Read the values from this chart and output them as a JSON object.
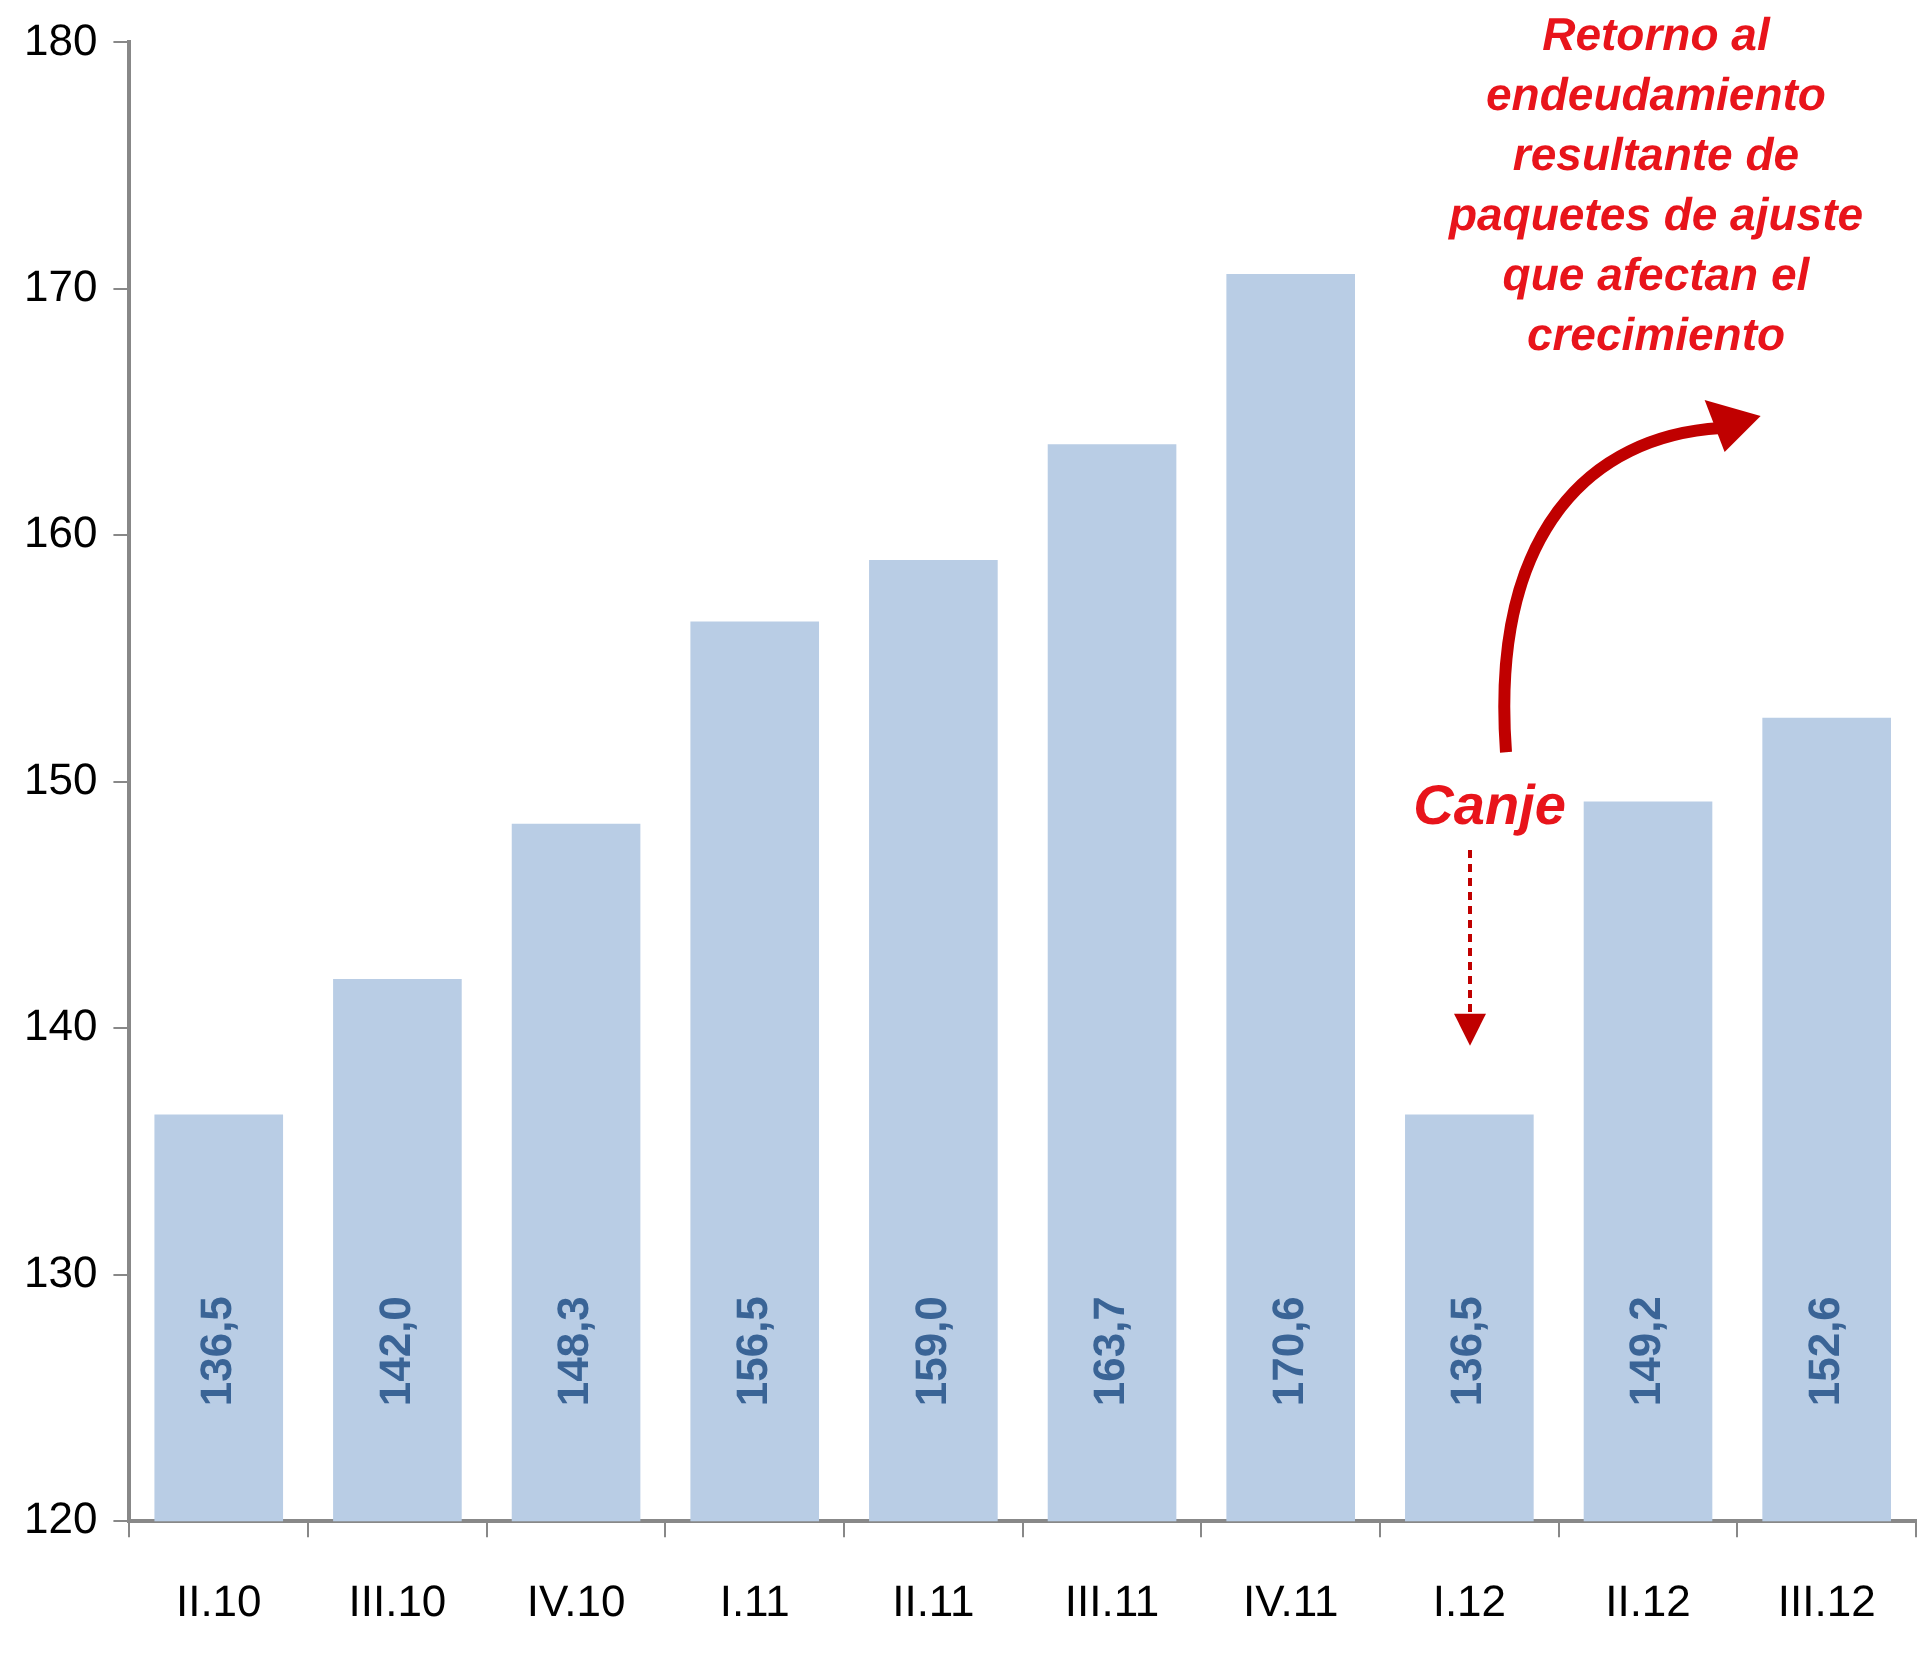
{
  "chart_data": {
    "type": "bar",
    "categories": [
      "II.10",
      "III.10",
      "IV.10",
      "I.11",
      "II.11",
      "III.11",
      "IV.11",
      "I.12",
      "II.12",
      "III.12"
    ],
    "values": [
      136.5,
      142.0,
      148.3,
      156.5,
      159.0,
      163.7,
      170.6,
      136.5,
      149.2,
      152.6
    ],
    "value_labels": [
      "136,5",
      "142,0",
      "148,3",
      "156,5",
      "159,0",
      "163,7",
      "170,6",
      "136,5",
      "149,2",
      "152,6"
    ],
    "color": "#b9cde5",
    "ylim": [
      120,
      180
    ],
    "yticks": [
      120,
      130,
      140,
      150,
      160,
      170,
      180
    ],
    "grid": false,
    "legend": false,
    "annotations": [
      "Retorno al endeudamiento resultante de paquetes de ajuste que afectan el crecimiento",
      "Canje"
    ]
  }
}
